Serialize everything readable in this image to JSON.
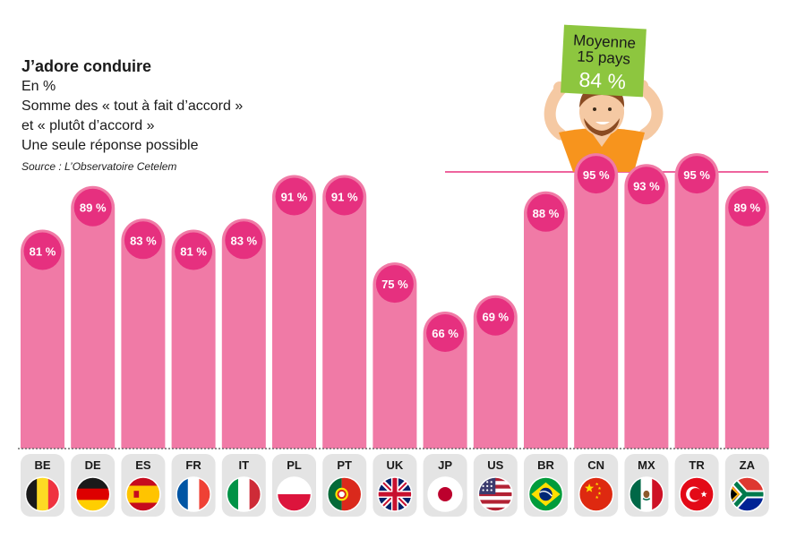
{
  "legend": {
    "title": "J’adore conduire",
    "lines": [
      "En %",
      "Somme des « tout à fait d’accord »",
      "et « plutôt d’accord »",
      "Une seule réponse possible"
    ],
    "source": "Source : L’Observatoire Cetelem"
  },
  "average_sign": {
    "label_line1": "Moyenne",
    "label_line2": "15 pays",
    "value": "84 %",
    "value_number": 84,
    "color": "#8dc63f"
  },
  "colors": {
    "bar": "#f07aa6",
    "bubble": "#e6307f",
    "tile": "#e4e4e4"
  },
  "chart_data": {
    "type": "bar",
    "unit": "%",
    "categories": [
      "BE",
      "DE",
      "ES",
      "FR",
      "IT",
      "PL",
      "PT",
      "UK",
      "JP",
      "US",
      "BR",
      "CN",
      "MX",
      "TR",
      "ZA"
    ],
    "values": [
      81,
      89,
      83,
      81,
      83,
      91,
      91,
      75,
      66,
      69,
      88,
      95,
      93,
      95,
      89
    ],
    "value_labels": [
      "81 %",
      "89 %",
      "83 %",
      "81 %",
      "83 %",
      "91 %",
      "91 %",
      "75 %",
      "66 %",
      "69 %",
      "88 %",
      "95 %",
      "93 %",
      "95 %",
      "89 %"
    ],
    "flags": [
      "belgium-flag",
      "germany-flag",
      "spain-flag",
      "france-flag",
      "italy-flag",
      "poland-flag",
      "portugal-flag",
      "uk-flag",
      "japan-flag",
      "usa-flag",
      "brazil-flag",
      "china-flag",
      "mexico-flag",
      "turkey-flag",
      "south-africa-flag"
    ],
    "average": 84,
    "title": "J’adore conduire",
    "xlabel": "",
    "ylabel": "",
    "grid": false
  }
}
